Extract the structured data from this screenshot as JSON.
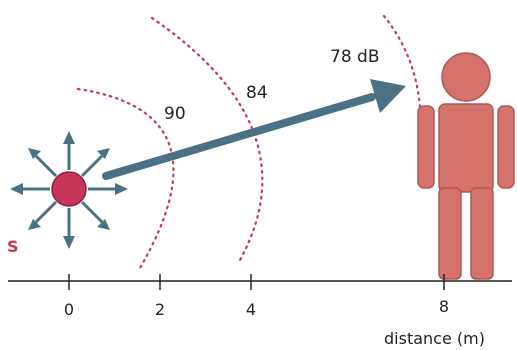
{
  "source": {
    "label": "S"
  },
  "sound_levels": [
    {
      "text": "90"
    },
    {
      "text": "84"
    },
    {
      "text": "78 dB"
    }
  ],
  "axis": {
    "ticks": [
      {
        "label": "0",
        "value": 0
      },
      {
        "label": "2",
        "value": 2
      },
      {
        "label": "4",
        "value": 4
      },
      {
        "label": "8",
        "value": 8
      }
    ],
    "title": "distance (m)"
  },
  "colors": {
    "source": "#c8355a",
    "arrows": "#4a7282",
    "wavefront": "#c2365e",
    "person": "#d4736c",
    "person_outline": "#b05850",
    "axis": "#222222"
  }
}
